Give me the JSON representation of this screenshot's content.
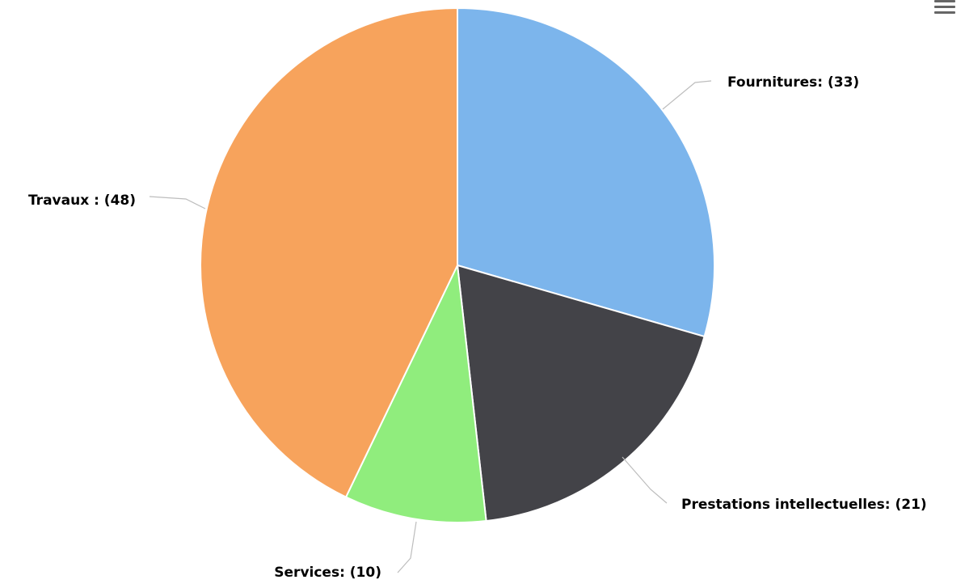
{
  "chart_data": {
    "type": "pie",
    "slices": [
      {
        "label": "Fournitures: (33)",
        "name": "Fournitures",
        "value": 33,
        "color": "#7cb5ec"
      },
      {
        "label": "Prestations intellectuelles: (21)",
        "name": "Prestations intellectuelles",
        "value": 21,
        "color": "#434348"
      },
      {
        "label": "Services: (10)",
        "name": "Services",
        "value": 10,
        "color": "#90ed7d"
      },
      {
        "label": "Travaux : (48)",
        "name": "Travaux",
        "value": 48,
        "color": "#f7a35c"
      }
    ]
  },
  "toolbar": {
    "menu_icon": "hamburger-menu-icon"
  }
}
